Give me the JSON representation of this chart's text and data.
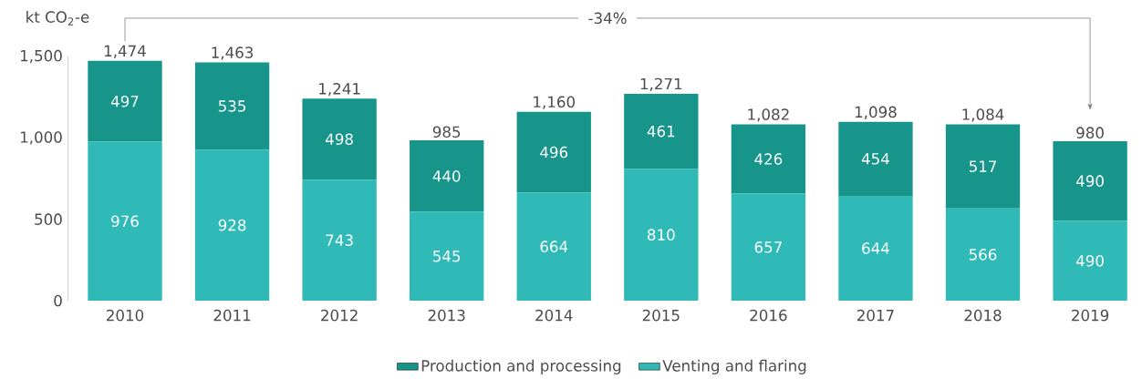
{
  "chart_data": {
    "type": "bar",
    "stacked": true,
    "ylabel": "kt CO$_{2}$-e",
    "categories": [
      "2010",
      "2011",
      "2012",
      "2013",
      "2014",
      "2015",
      "2016",
      "2017",
      "2018",
      "2019"
    ],
    "series": [
      {
        "name": "Venting and flaring",
        "color": "#2fbab8",
        "values": [
          976,
          928,
          743,
          545,
          664,
          810,
          657,
          644,
          566,
          490
        ]
      },
      {
        "name": "Production and processing",
        "color": "#17958a",
        "values": [
          497,
          535,
          498,
          440,
          496,
          461,
          426,
          454,
          517,
          490
        ]
      }
    ],
    "totals": [
      "1,474",
      "1,463",
      "1,241",
      "985",
      "1,160",
      "1,271",
      "1,082",
      "1,098",
      "1,084",
      "980"
    ],
    "data_labels": true,
    "ylim": [
      0,
      1500
    ],
    "yticks": [
      0,
      {
        "value": 500,
        "label": "500"
      },
      {
        "value": 1000,
        "label": "1,000"
      },
      {
        "value": 1500,
        "label": "1,500"
      }
    ],
    "annotations": [
      "-34%"
    ],
    "legend": "bottom"
  }
}
